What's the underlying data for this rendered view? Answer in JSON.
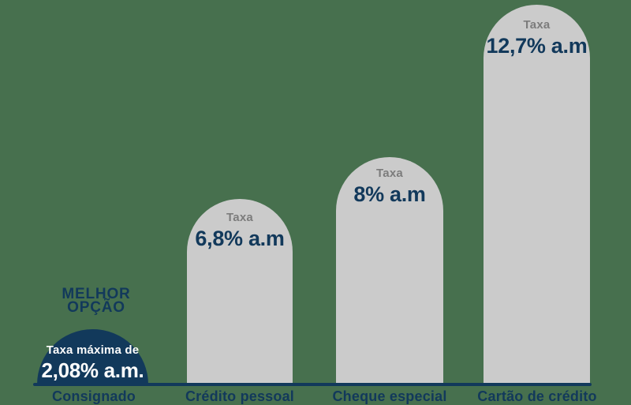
{
  "chart_data": {
    "type": "bar",
    "categories": [
      "Consignado",
      "Crédito pessoal",
      "Cheque especial",
      "Cartão de crédito"
    ],
    "values": [
      2.08,
      6.8,
      8,
      12.7
    ],
    "value_unit": "% a.m.",
    "value_labels": [
      "Taxa máxima de 2,08% a.m.",
      "Taxa 6,8% a.m",
      "Taxa 8% a.m",
      "Taxa 12,7% a.m"
    ],
    "title": "",
    "xlabel": "",
    "ylabel": "",
    "legend": false,
    "grid": false,
    "annotations": [
      "MELHOR OPÇÃO"
    ],
    "highlight_category": "Consignado"
  },
  "annotation": {
    "line1": "MELHOR",
    "line2": "OPÇÃO"
  },
  "bars": [
    {
      "tax_prefix": "Taxa máxima de",
      "tax_value": "2,08% a.m.",
      "label": "Consignado",
      "highlight": true
    },
    {
      "tax_prefix": "Taxa",
      "tax_value": "6,8% a.m",
      "label": "Crédito pessoal",
      "highlight": false
    },
    {
      "tax_prefix": "Taxa",
      "tax_value": "8% a.m",
      "label": "Cheque especial",
      "highlight": false
    },
    {
      "tax_prefix": "Taxa",
      "tax_value": "12,7% a.m",
      "label": "Cartão de crédito",
      "highlight": false
    }
  ],
  "colors": {
    "background": "#47704E",
    "navy": "#12395B",
    "bar_gray": "#CBCBCB",
    "taxa_gray": "#7C7C7C",
    "white_text": "#FDFDFD"
  }
}
